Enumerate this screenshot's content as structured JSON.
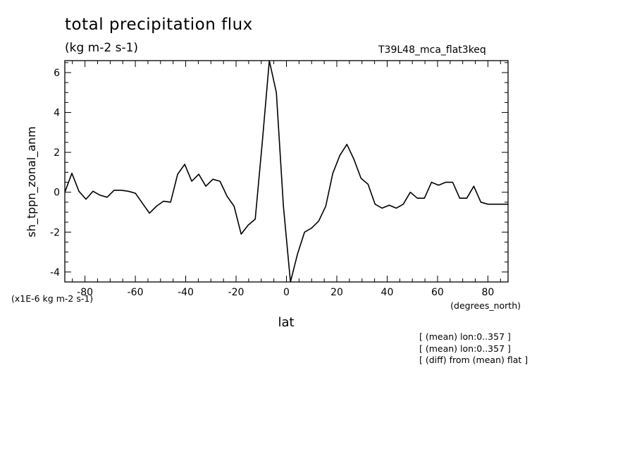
{
  "chart_data": {
    "type": "line",
    "title": "total precipitation flux",
    "subtitle": "(kg m-2 s-1)",
    "experiment": "T39L48_mca_flat3keq",
    "xlabel": "lat",
    "xunits": "(degrees_north)",
    "ylabel": "sh_tppn_zonal_anm",
    "yscale_label": "(x1E-6 kg m-2 s-1)",
    "xlim": [
      -88,
      88
    ],
    "ylim": [
      -4.5,
      6.6
    ],
    "xticks": [
      -80,
      -60,
      -40,
      -20,
      0,
      20,
      40,
      60,
      80
    ],
    "yticks": [
      -4,
      -2,
      0,
      2,
      4,
      6
    ],
    "grid": false,
    "series": [
      {
        "x": [
          -88,
          -85.2,
          -82.4,
          -79.6,
          -76.8,
          -74,
          -71.2,
          -68.4,
          -65.6,
          -62.8,
          -60,
          -57.2,
          -54.4,
          -51.6,
          -48.8,
          -46,
          -43.2,
          -40.4,
          -37.6,
          -34.8,
          -32,
          -29.2,
          -26.4,
          -23.6,
          -20.8,
          -18,
          -15.2,
          -12.4,
          -9.6,
          -6.8,
          -4,
          -1.2,
          1.6,
          4.4,
          7.2,
          10,
          12.8,
          15.6,
          18.4,
          21.2,
          24,
          26.8,
          29.6,
          32.4,
          35.2,
          38,
          40.8,
          43.6,
          46.4,
          49.2,
          52,
          54.8,
          57.6,
          60.4,
          63.2,
          66,
          68.8,
          71.6,
          74.4,
          77.2,
          80,
          82.8,
          85.6,
          88
        ],
        "y": [
          0,
          0.95,
          0.05,
          -0.35,
          0.05,
          -0.15,
          -0.25,
          0.1,
          0.1,
          0.05,
          -0.05,
          -0.55,
          -1.05,
          -0.7,
          -0.45,
          -0.5,
          0.9,
          1.4,
          0.55,
          0.9,
          0.3,
          0.65,
          0.55,
          -0.2,
          -0.7,
          -2.1,
          -1.65,
          -1.35,
          2.5,
          6.6,
          5.0,
          -0.7,
          -4.5,
          -3.1,
          -2.0,
          -1.8,
          -1.45,
          -0.7,
          0.95,
          1.85,
          2.4,
          1.65,
          0.7,
          0.4,
          -0.6,
          -0.8,
          -0.65,
          -0.8,
          -0.6,
          0.0,
          -0.3,
          -0.3,
          0.5,
          0.35,
          0.5,
          0.5,
          -0.3,
          -0.3,
          0.3,
          -0.5,
          -0.6,
          -0.6,
          -0.6,
          -0.6
        ]
      }
    ]
  },
  "notes": [
    "[ (mean) lon:0..357 ]",
    "[ (mean) lon:0..357 ]",
    "[ (diff) from (mean) flat ]"
  ],
  "colors": {
    "line": "#000000",
    "background": "#ffffff"
  }
}
